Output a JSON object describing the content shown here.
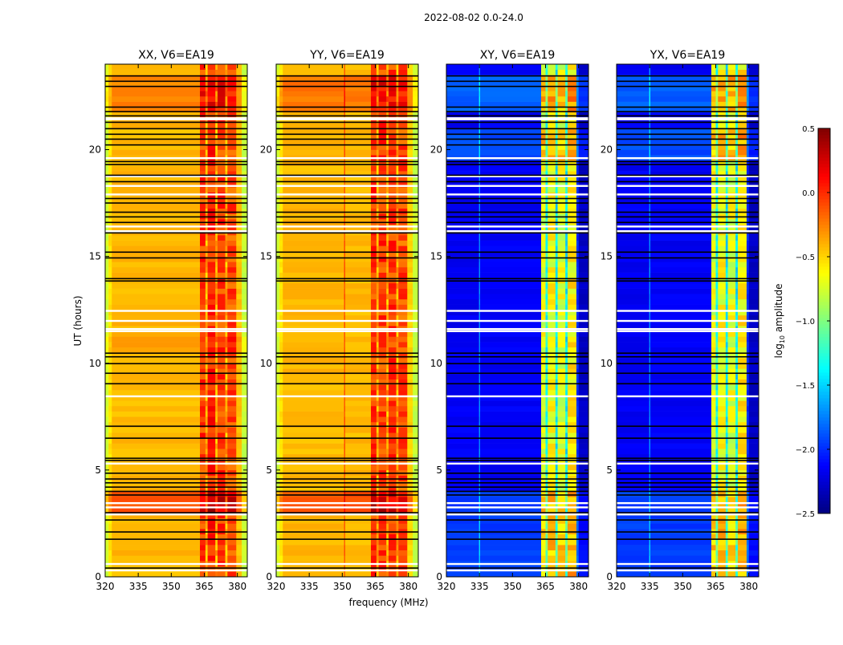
{
  "chart_data": {
    "type": "heatmap",
    "title": "2022-08-02 0.0-24.0",
    "xlabel": "frequency (MHz)",
    "ylabel": "UT (hours)",
    "xlim": [
      320,
      384.5
    ],
    "ylim": [
      0,
      24
    ],
    "xticks": [
      "320",
      "335",
      "350",
      "365",
      "380"
    ],
    "xtick_values": [
      320,
      335,
      350,
      365,
      380
    ],
    "yticks": [
      "0",
      "5",
      "10",
      "15",
      "20"
    ],
    "ytick_values": [
      0,
      5,
      10,
      15,
      20
    ],
    "colormap": "jet",
    "colorbar": {
      "label_main": "log",
      "label_sub": "10",
      "label_rest": " amplitude",
      "range": [
        -2.5,
        0.5
      ],
      "ticks": [
        "0.5",
        "0.0",
        "−0.5",
        "−1.0",
        "−1.5",
        "−2.0",
        "−2.5"
      ],
      "tick_values": [
        0.5,
        0.0,
        -0.5,
        -1.0,
        -1.5,
        -2.0,
        -2.5
      ]
    },
    "flagged_black_hours": [
      23.45,
      23.2,
      22.96,
      21.99,
      21.78,
      21.58,
      21.28,
      20.98,
      20.72,
      20.49,
      20.22,
      19.44,
      19.3,
      18.8,
      18.5,
      17.71,
      17.5,
      17.07,
      16.85,
      16.59,
      16.1,
      15.2,
      14.93,
      13.96,
      13.85,
      10.47,
      10.3,
      9.98,
      9.53,
      9.04,
      7.05,
      6.49,
      5.55,
      5.45,
      4.85,
      4.58,
      4.4,
      4.2,
      4.0,
      3.83,
      3.0,
      2.66,
      2.1,
      1.76,
      0.41
    ],
    "flagged_white_hours": [
      21.47,
      21.42,
      19.6,
      18.75,
      18.3,
      17.9,
      16.4,
      16.18,
      12.45,
      11.98,
      11.6,
      11.5,
      8.45,
      5.3,
      3.45,
      3.25,
      2.92,
      0.6,
      0.3
    ],
    "panels": [
      {
        "title": "XX, V6=EA19",
        "bands": [
          [
            320,
            321.5,
            -0.75
          ],
          [
            321.5,
            323,
            -0.55
          ],
          [
            323,
            363,
            -0.42
          ],
          [
            363,
            365.5,
            -0.05
          ],
          [
            365.5,
            366.5,
            -0.38
          ],
          [
            366.5,
            370,
            0.0
          ],
          [
            370,
            371,
            -0.38
          ],
          [
            371,
            374.5,
            -0.05
          ],
          [
            374.5,
            375.5,
            -0.38
          ],
          [
            375.5,
            379.5,
            -0.1
          ],
          [
            379.5,
            382,
            -0.45
          ],
          [
            382,
            384.5,
            -0.8
          ]
        ],
        "time_offsets": [
          [
            3.0,
            3.8,
            0.3
          ],
          [
            21.6,
            23.5,
            0.15
          ],
          [
            10.5,
            11.2,
            0.1
          ]
        ]
      },
      {
        "title": "YY, V6=EA19",
        "bands": [
          [
            320,
            321.5,
            -0.75
          ],
          [
            321.5,
            323,
            -0.55
          ],
          [
            323,
            350.8,
            -0.42
          ],
          [
            350.8,
            351.3,
            -0.1
          ],
          [
            351.3,
            363,
            -0.42
          ],
          [
            363,
            365.5,
            -0.05
          ],
          [
            365.5,
            366.5,
            -0.38
          ],
          [
            366.5,
            370,
            -0.05
          ],
          [
            370,
            371,
            -0.38
          ],
          [
            371,
            374.5,
            -0.05
          ],
          [
            374.5,
            375.5,
            -0.38
          ],
          [
            375.5,
            379.5,
            -0.1
          ],
          [
            379.5,
            382,
            -0.5
          ],
          [
            382,
            384.5,
            -0.8
          ]
        ],
        "time_offsets": [
          [
            3.0,
            3.8,
            0.3
          ],
          [
            21.6,
            23.5,
            0.2
          ]
        ]
      },
      {
        "title": "XY, V6=EA19",
        "bands": [
          [
            320,
            334.8,
            -2.15
          ],
          [
            334.8,
            335.3,
            -1.7
          ],
          [
            335.3,
            363,
            -2.15
          ],
          [
            363,
            365,
            -0.7
          ],
          [
            365,
            366,
            -1.3
          ],
          [
            366,
            369.5,
            -0.65
          ],
          [
            369.5,
            370.5,
            -1.4
          ],
          [
            370.5,
            374,
            -0.7
          ],
          [
            374,
            375,
            -1.4
          ],
          [
            375,
            379,
            -0.6
          ],
          [
            379,
            380,
            -2.0
          ],
          [
            380,
            384.5,
            -2.3
          ]
        ],
        "time_offsets": [
          [
            0,
            3.8,
            0.2
          ],
          [
            19.5,
            21,
            0.25
          ],
          [
            21.6,
            23.5,
            0.3
          ]
        ]
      },
      {
        "title": "YX, V6=EA19",
        "bands": [
          [
            320,
            334.8,
            -2.15
          ],
          [
            334.8,
            335.3,
            -1.7
          ],
          [
            335.3,
            363,
            -2.15
          ],
          [
            363,
            365,
            -0.7
          ],
          [
            365,
            366,
            -1.3
          ],
          [
            366,
            369.5,
            -0.65
          ],
          [
            369.5,
            370.5,
            -1.4
          ],
          [
            370.5,
            374,
            -0.7
          ],
          [
            374,
            375,
            -1.4
          ],
          [
            375,
            379,
            -0.6
          ],
          [
            379,
            380,
            -2.0
          ],
          [
            380,
            384.5,
            -2.3
          ]
        ],
        "time_offsets": [
          [
            0,
            3.8,
            0.2
          ],
          [
            19.5,
            21,
            0.25
          ],
          [
            21.6,
            23.5,
            0.3
          ]
        ]
      }
    ]
  }
}
